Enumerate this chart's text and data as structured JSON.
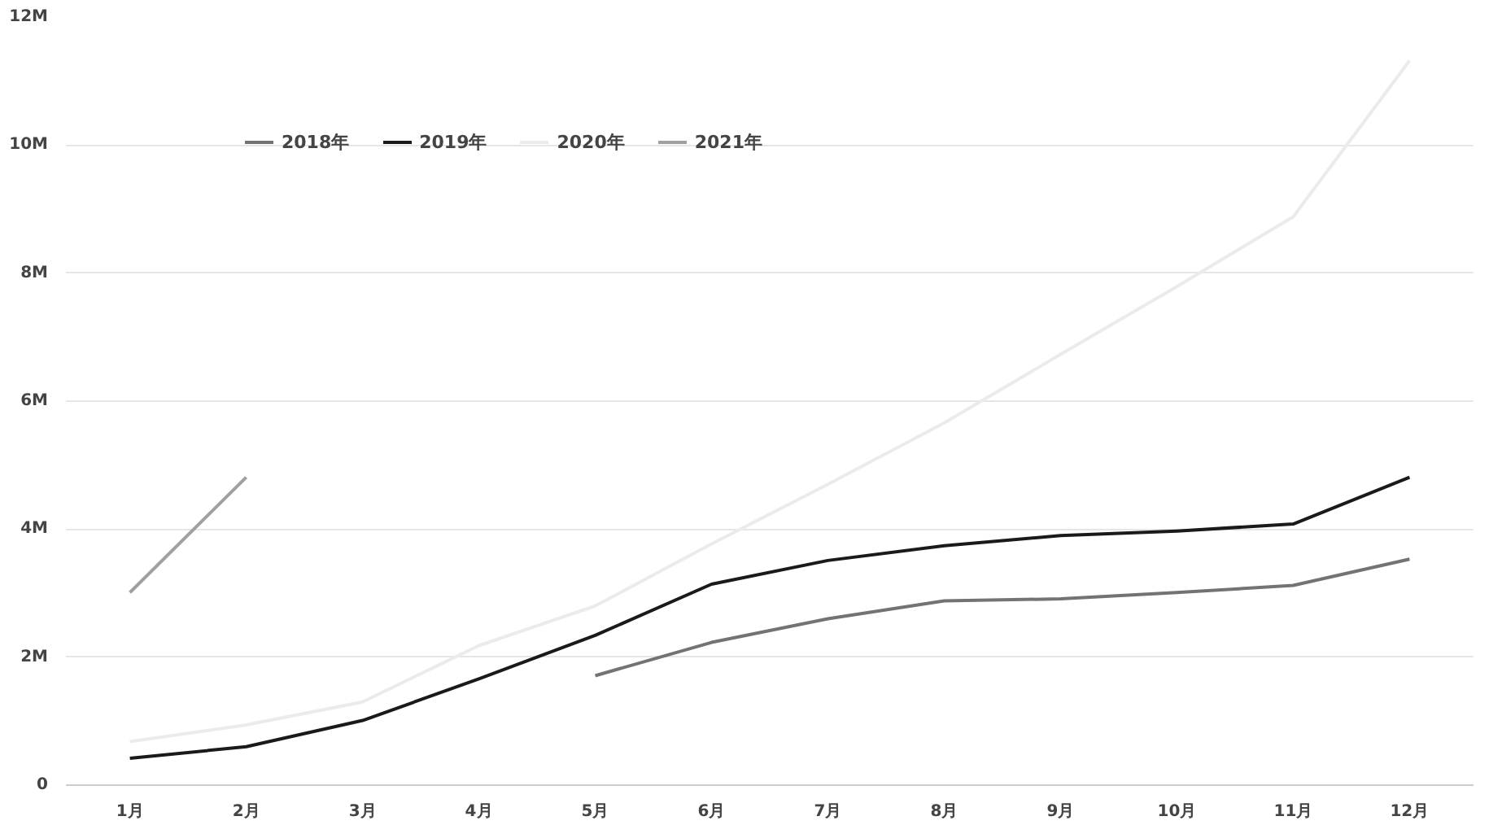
{
  "chart_data": {
    "type": "line",
    "categories": [
      "1月",
      "2月",
      "3月",
      "4月",
      "5月",
      "6月",
      "7月",
      "8月",
      "9月",
      "10月",
      "11月",
      "12月"
    ],
    "series": [
      {
        "name": "2018年",
        "color": "#737373",
        "values": [
          null,
          null,
          null,
          null,
          1710000,
          2230000,
          2600000,
          2880000,
          2910000,
          3010000,
          3120000,
          3530000
        ]
      },
      {
        "name": "2019年",
        "color": "#1a1a1a",
        "values": [
          420000,
          600000,
          1010000,
          1660000,
          2340000,
          3140000,
          3510000,
          3740000,
          3900000,
          3970000,
          4080000,
          4810000
        ]
      },
      {
        "name": "2020年",
        "color": "#ebebeb",
        "values": [
          680000,
          940000,
          1300000,
          2180000,
          2800000,
          3770000,
          4700000,
          5660000,
          6730000,
          7790000,
          8880000,
          11320000
        ]
      },
      {
        "name": "2021年",
        "color": "#a0a0a0",
        "values": [
          3010000,
          4810000,
          null,
          null,
          null,
          null,
          null,
          null,
          null,
          null,
          null,
          null
        ]
      }
    ],
    "ylim": [
      0,
      12000000
    ],
    "yticks": [
      0,
      {
        "value": 2000000,
        "label": "2M"
      },
      {
        "value": 4000000,
        "label": "4M"
      },
      {
        "value": 6000000,
        "label": "6M"
      },
      {
        "value": 8000000,
        "label": "8M"
      },
      {
        "value": 10000000,
        "label": "10M"
      },
      {
        "value": 12000000,
        "label": "12M"
      }
    ],
    "grid": "y",
    "legend": "top left",
    "marker": "none",
    "line_style": "solid"
  }
}
